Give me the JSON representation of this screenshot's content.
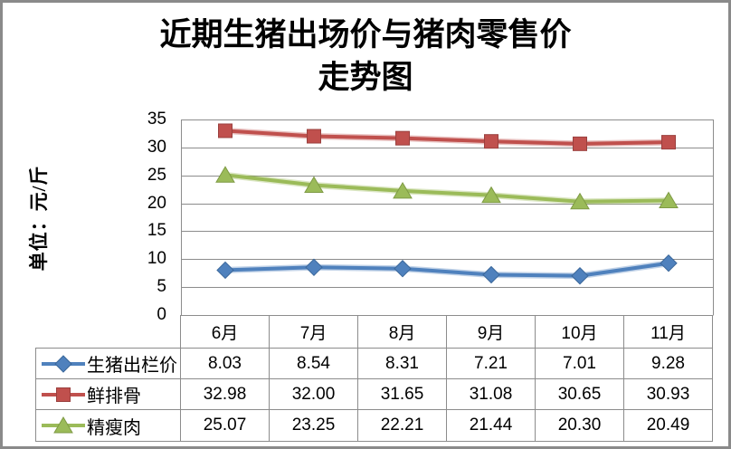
{
  "title": {
    "line1": "近期生猪出场价与猪肉零售价",
    "line2": "走势图"
  },
  "y_axis_title": "单位：元/斤",
  "chart_data": {
    "type": "line",
    "title": "近期生猪出场价与猪肉零售价走势图",
    "ylabel": "单位：元/斤",
    "xlabel": "",
    "categories": [
      "6月",
      "7月",
      "8月",
      "9月",
      "10月",
      "11月"
    ],
    "series": [
      {
        "name": "生猪出栏价",
        "marker": "diamond",
        "color": "#4F81BD",
        "edge_color": "#3A679A",
        "values": [
          8.03,
          8.54,
          8.31,
          7.21,
          7.01,
          9.28
        ]
      },
      {
        "name": "鲜排骨",
        "marker": "square",
        "color": "#C0504D",
        "edge_color": "#9A403E",
        "values": [
          32.98,
          32.0,
          31.65,
          31.08,
          30.65,
          30.93
        ]
      },
      {
        "name": "精瘦肉",
        "marker": "triangle",
        "color": "#9BBB59",
        "edge_color": "#7E9A44",
        "values": [
          25.07,
          23.25,
          22.21,
          21.44,
          20.3,
          20.49
        ]
      }
    ],
    "ylim": [
      0,
      35
    ],
    "ytick_step": 5,
    "value_decimals": 2,
    "grid": true,
    "legend_position": "data-table-left",
    "colors": {
      "gridline": "#8C8C8C",
      "plot_border": "#8C8C8C",
      "table_border": "#8C8C8C",
      "text": "#000000",
      "frame": "#8A8A8A",
      "background": "#FFFFFF"
    }
  }
}
